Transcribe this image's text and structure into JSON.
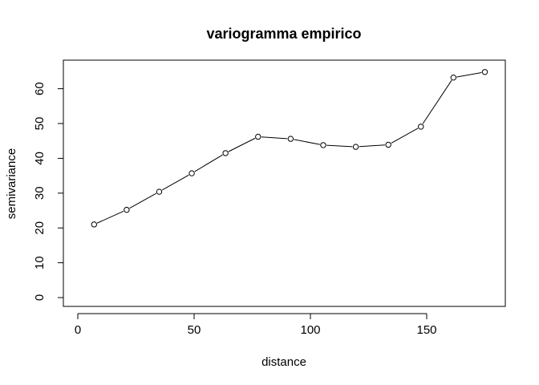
{
  "chart_data": {
    "type": "line",
    "title": "variogramma empirico",
    "xlabel": "distance",
    "ylabel": "semivariance",
    "xlim": [
      0,
      175
    ],
    "ylim": [
      0,
      65
    ],
    "xticks": [
      0,
      50,
      100,
      150
    ],
    "yticks": [
      0,
      10,
      20,
      30,
      40,
      50,
      60
    ],
    "grid": false,
    "marker": "open-circle",
    "x": [
      7,
      21,
      35,
      49,
      63.5,
      77.5,
      91.5,
      105.5,
      119.5,
      133.5,
      147.5,
      161.5,
      175
    ],
    "y": [
      21,
      25.2,
      30.4,
      35.7,
      41.5,
      46.2,
      45.6,
      43.8,
      43.3,
      43.9,
      49.1,
      63.2,
      64.8
    ],
    "colors": {
      "line": "#000000",
      "background": "#ffffff"
    }
  }
}
